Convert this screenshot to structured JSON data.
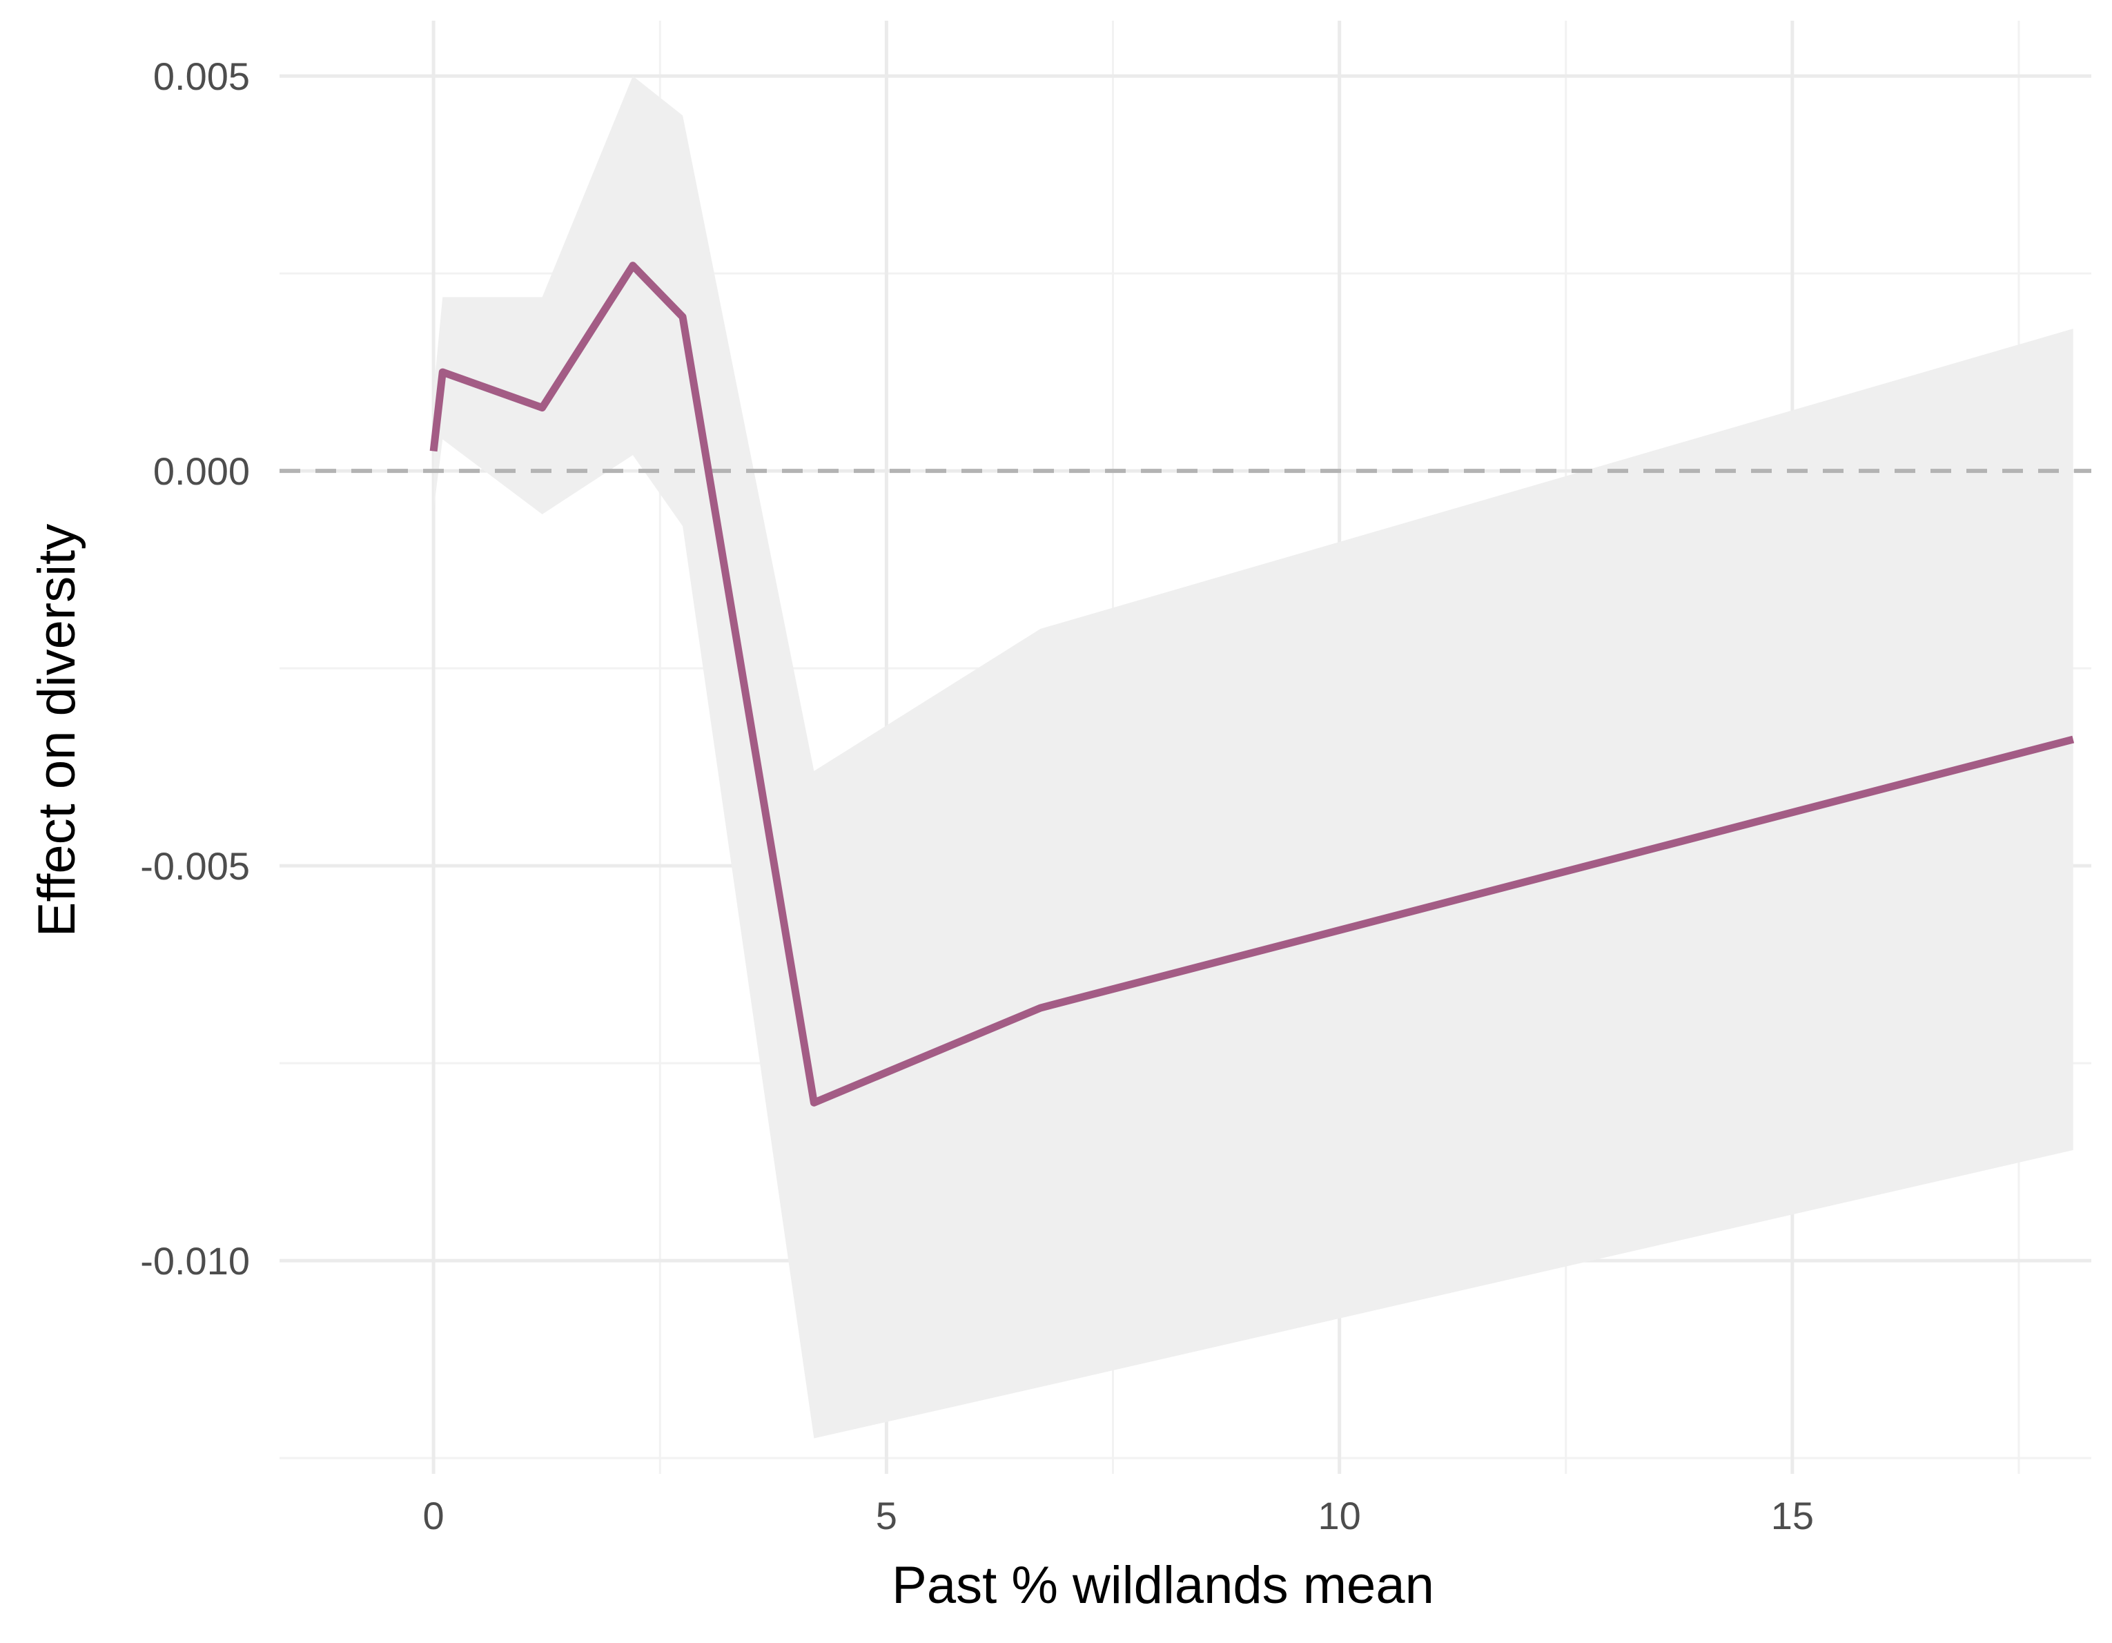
{
  "chart_data": {
    "type": "line",
    "title": "",
    "xlabel": "Past % wildlands mean",
    "ylabel": "Effect on diversity",
    "xlim": [
      -1.7,
      18.3
    ],
    "ylim": [
      -0.0127,
      0.0057
    ],
    "x_ticks": [
      0,
      5,
      10,
      15
    ],
    "x_tick_labels": [
      "0",
      "5",
      "10",
      "15"
    ],
    "y_ticks": [
      0.005,
      0.0,
      -0.005,
      -0.01
    ],
    "y_tick_labels": [
      "0.005",
      "0.000",
      "-0.005",
      "-0.010"
    ],
    "grid": true,
    "reference_line": {
      "y": 0.0,
      "style": "dashed"
    },
    "series": [
      {
        "x": [
          0.0,
          0.1,
          1.2,
          2.2,
          2.75,
          4.2,
          6.7,
          18.1
        ],
        "y": [
          0.00025,
          0.00125,
          0.0008,
          0.0026,
          0.00195,
          -0.008,
          -0.0068,
          -0.0034
        ],
        "lower": [
          -0.0005,
          0.0004,
          -0.00055,
          0.0002,
          -0.0007,
          -0.01225,
          -0.0116,
          -0.0086
        ],
        "upper": [
          0.001,
          0.0022,
          0.0022,
          0.005,
          0.0045,
          -0.0038,
          -0.002,
          0.0018
        ]
      }
    ],
    "colors": {
      "line": "#a35c85",
      "ribbon": "#efefef",
      "grid_major": "#ebebeb",
      "grid_minor": "#f2f2f2",
      "reference_line": "#b3b3b3"
    }
  }
}
